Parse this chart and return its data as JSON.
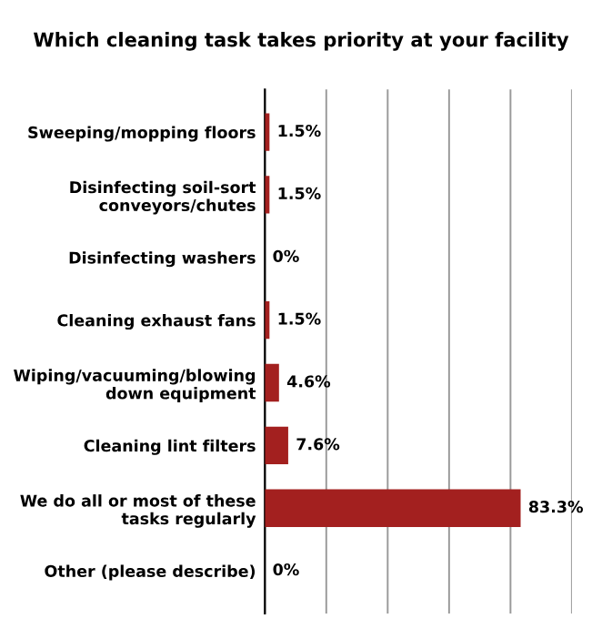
{
  "chart_data": {
    "type": "bar",
    "orientation": "horizontal",
    "title": "Which cleaning task takes priority at your facility",
    "categories": [
      "Sweeping/mopping floors",
      "Disinfecting soil-sort\nconveyors/chutes",
      "Disinfecting washers",
      "Cleaning exhaust fans",
      "Wiping/vacuuming/blowing\ndown equipment",
      "Cleaning lint filters",
      "We do all or most of these\ntasks regularly",
      "Other (please describe)"
    ],
    "values": [
      1.5,
      1.5,
      0,
      1.5,
      4.6,
      7.6,
      83.3,
      0
    ],
    "value_labels": [
      "1.5%",
      "1.5%",
      "0%",
      "1.5%",
      "4.6%",
      "7.6%",
      "83.3%",
      "0%"
    ],
    "color": "#a3201f",
    "xlim": [
      0,
      100
    ],
    "xticks": [
      {
        "value": 0,
        "label": null
      },
      {
        "value": 20,
        "label": null
      },
      {
        "value": 40,
        "label": null
      },
      {
        "value": 60,
        "label": null
      },
      {
        "value": 80,
        "label": null
      },
      {
        "value": 100,
        "label": null
      }
    ],
    "tick_labels": "y",
    "grid": "x"
  }
}
